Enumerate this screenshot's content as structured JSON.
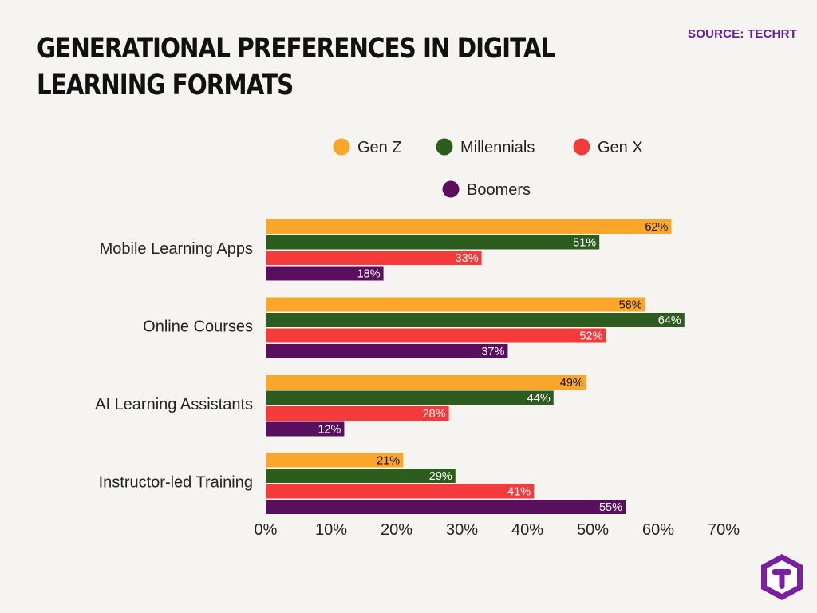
{
  "page": {
    "title": "GENERATIONAL PREFERENCES IN DIGITAL LEARNING FORMATS",
    "source": "SOURCE: TECHRT"
  },
  "logo": {
    "icon": "techrt-logo-icon",
    "letter": "T",
    "color": "#7b1fa2"
  },
  "chart_data": {
    "type": "bar",
    "orientation": "horizontal",
    "title": "GENERATIONAL PREFERENCES IN DIGITAL LEARNING FORMATS",
    "xlabel": "",
    "ylabel": "",
    "categories": [
      "Mobile Learning Apps",
      "Online Courses",
      "AI Learning Assistants",
      "Instructor-led Training"
    ],
    "series": [
      {
        "name": "Gen Z",
        "color": "#f9a62a",
        "label_color": "#111111",
        "values": [
          62,
          58,
          49,
          21
        ]
      },
      {
        "name": "Millennials",
        "color": "#2d5d1e",
        "label_color": "#ffffff",
        "values": [
          51,
          64,
          44,
          29
        ]
      },
      {
        "name": "Gen X",
        "color": "#f43a3a",
        "label_color": "#ffffff",
        "values": [
          33,
          52,
          28,
          41
        ]
      },
      {
        "name": "Boomers",
        "color": "#5a0f5e",
        "label_color": "#ffffff",
        "values": [
          18,
          37,
          12,
          55
        ]
      }
    ],
    "value_suffix": "%",
    "xlim": [
      0,
      70
    ],
    "xticks": [
      0,
      10,
      20,
      30,
      40,
      50,
      60,
      70
    ],
    "xtick_labels": [
      "0%",
      "10%",
      "20%",
      "30%",
      "40%",
      "50%",
      "60%",
      "70%"
    ],
    "grid": false,
    "legend_position": "top-right"
  }
}
